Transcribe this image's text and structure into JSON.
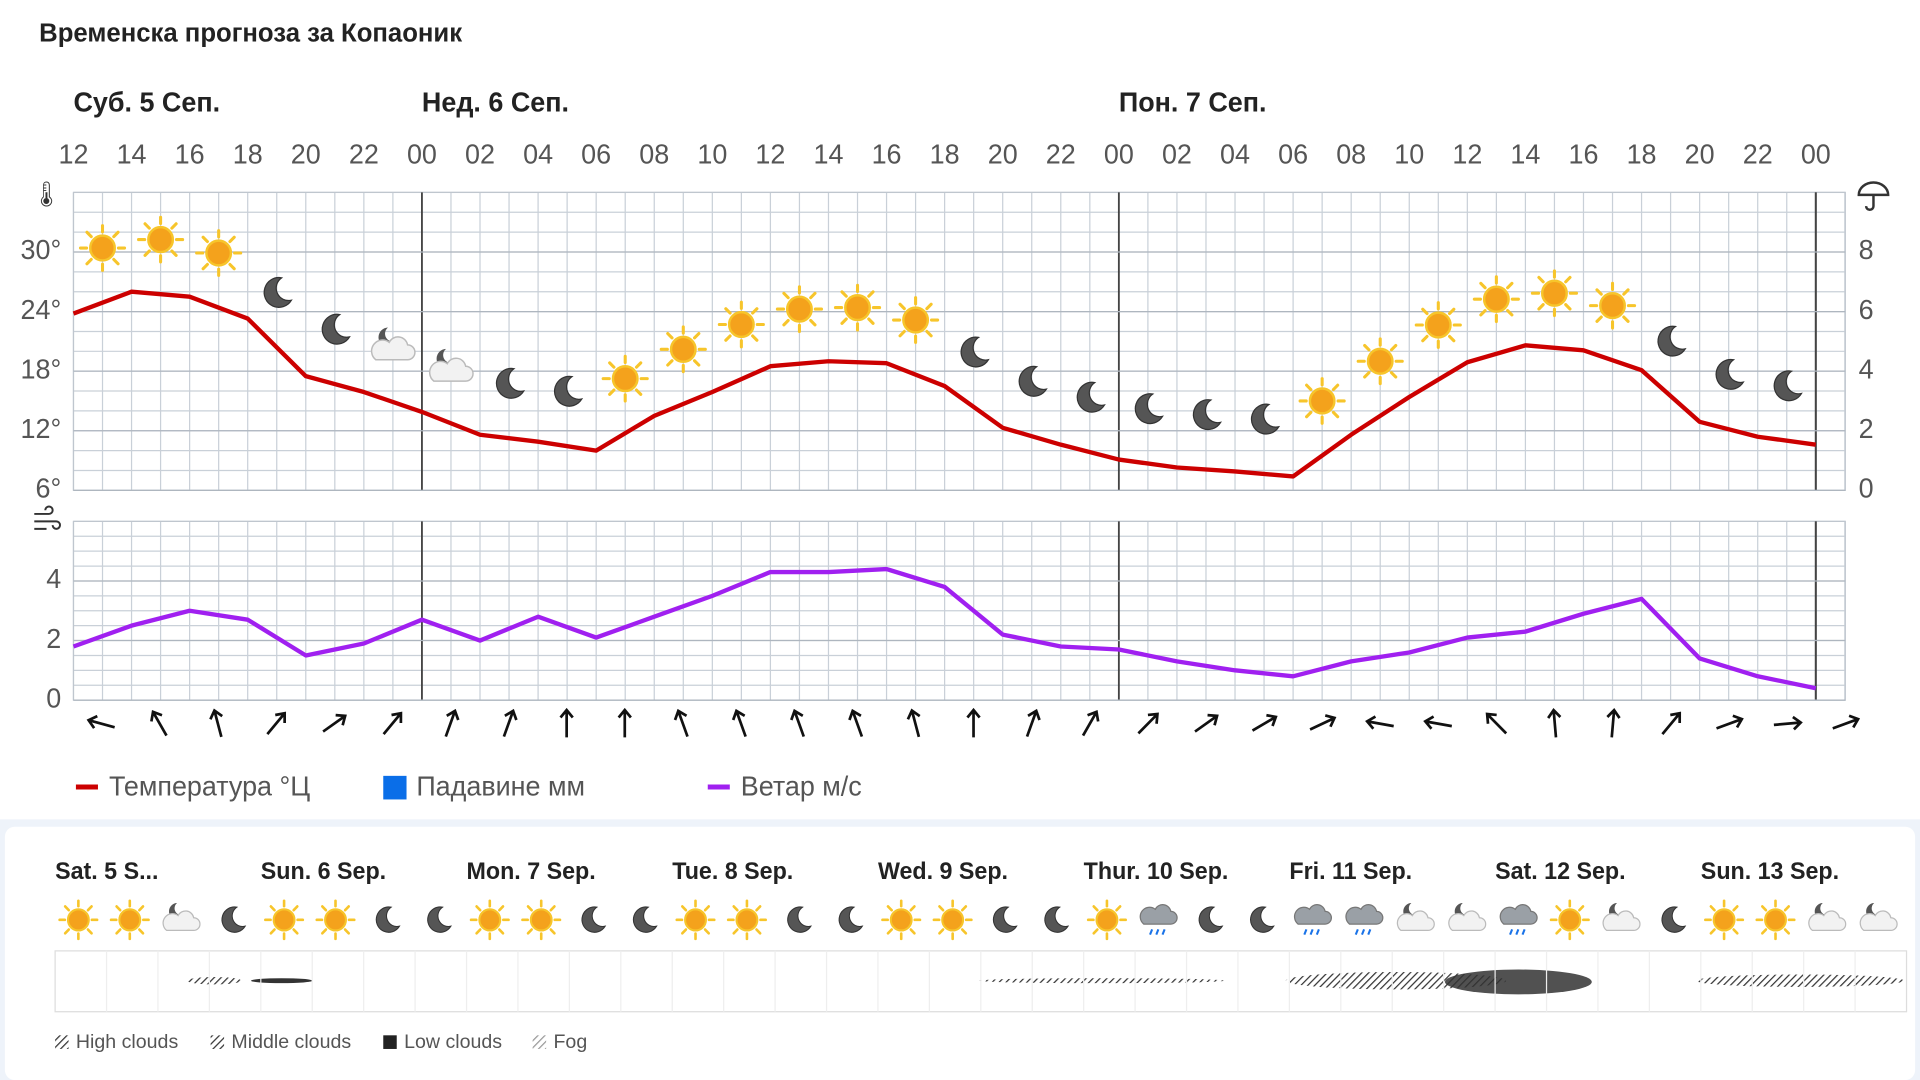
{
  "chart_data": [
    {
      "type": "line",
      "title": "Временска прогноза за Копаоник",
      "day_labels": [
        "Суб. 5 Сеп.",
        "Нед. 6 Сеп.",
        "Пон. 7 Сеп."
      ],
      "categories": [
        "12",
        "14",
        "16",
        "18",
        "20",
        "22",
        "00",
        "02",
        "04",
        "06",
        "08",
        "10",
        "12",
        "14",
        "16",
        "18",
        "20",
        "22",
        "00",
        "02",
        "04",
        "06",
        "08",
        "10",
        "12",
        "14",
        "16",
        "18",
        "20",
        "22",
        "00"
      ],
      "series": [
        {
          "name": "Температура °Ц",
          "color": "#cc0000",
          "values": [
            23.8,
            26,
            25.5,
            23.3,
            17.5,
            15.9,
            13.9,
            11.6,
            10.9,
            10,
            13.5,
            15.9,
            18.5,
            19,
            18.8,
            16.5,
            12.3,
            10.6,
            9.1,
            8.3,
            7.9,
            7.4,
            11.6,
            15.4,
            18.9,
            20.6,
            20.1,
            18.1,
            12.9,
            11.4,
            10.6
          ]
        },
        {
          "name": "Падавине мм",
          "color": "#0a6ee8",
          "axis": "y2",
          "values": [
            0,
            0,
            0,
            0,
            0,
            0,
            0,
            0,
            0,
            0,
            0,
            0,
            0,
            0,
            0,
            0,
            0,
            0,
            0,
            0,
            0,
            0,
            0,
            0,
            0,
            0,
            0,
            0,
            0,
            0,
            0
          ]
        }
      ],
      "ylim": [
        6,
        36
      ],
      "yticks": [
        {
          "value": 6,
          "label": "6°"
        },
        {
          "value": 12,
          "label": "12°"
        },
        {
          "value": 18,
          "label": "18°"
        },
        {
          "value": 24,
          "label": "24°"
        },
        {
          "value": 30,
          "label": "30°"
        }
      ],
      "y2lim": [
        0,
        10
      ],
      "y2ticks": [
        0,
        2,
        4,
        6,
        8
      ],
      "grid": true
    },
    {
      "type": "line",
      "series": [
        {
          "name": "Ветар м/с",
          "color": "#a020f0",
          "values": [
            1.8,
            2.5,
            3.0,
            2.7,
            1.5,
            1.9,
            2.7,
            2.0,
            2.8,
            2.1,
            2.8,
            3.5,
            4.3,
            4.3,
            4.4,
            3.8,
            2.2,
            1.8,
            1.7,
            1.3,
            1.0,
            0.8,
            1.3,
            1.6,
            2.1,
            2.3,
            2.9,
            3.4,
            1.4,
            0.8,
            0.4
          ]
        }
      ],
      "wind_direction_deg": [
        105,
        150,
        165,
        220,
        235,
        220,
        200,
        200,
        180,
        180,
        160,
        160,
        160,
        160,
        165,
        180,
        200,
        210,
        225,
        235,
        240,
        245,
        100,
        100,
        135,
        175,
        185,
        220,
        250,
        265,
        250
      ],
      "ylim": [
        0,
        6
      ],
      "yticks": [
        0,
        2,
        4
      ],
      "grid": true
    }
  ],
  "meteogram": {
    "days": [
      "Sat. 5 S...",
      "Sun. 6 Sep.",
      "Mon. 7 Sep.",
      "Tue. 8 Sep.",
      "Wed. 9 Sep.",
      "Thur. 10 Sep.",
      "Fri. 11 Sep.",
      "Sat. 12 Sep.",
      "Sun. 13 Sep."
    ],
    "legend": [
      "High clouds",
      "Middle clouds",
      "Low clouds",
      "Fog"
    ]
  }
}
